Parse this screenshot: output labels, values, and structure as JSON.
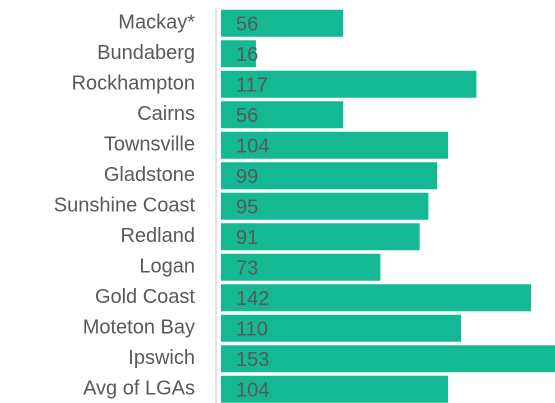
{
  "chart_data": {
    "type": "bar",
    "orientation": "horizontal",
    "categories": [
      "Mackay*",
      "Bundaberg",
      "Rockhampton",
      "Cairns",
      "Townsville",
      "Gladstone",
      "Sunshine Coast",
      "Redland",
      "Logan",
      "Gold Coast",
      "Moteton Bay",
      "Ipswich",
      "Avg of LGAs"
    ],
    "values": [
      56,
      16,
      117,
      56,
      104,
      99,
      95,
      91,
      73,
      142,
      110,
      153,
      104
    ],
    "color": "#14b994",
    "xlim": [
      0,
      153
    ]
  }
}
